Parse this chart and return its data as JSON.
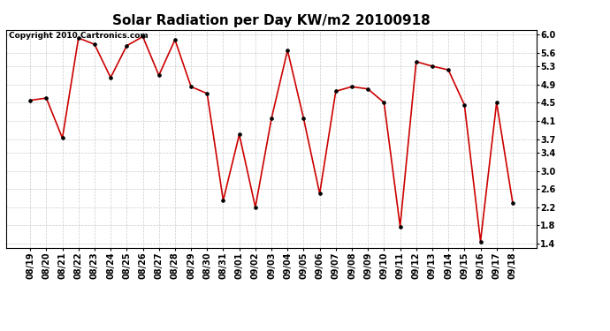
{
  "title": "Solar Radiation per Day KW/m2 20100918",
  "copyright": "Copyright 2010 Cartronics.com",
  "dates": [
    "08/19",
    "08/20",
    "08/21",
    "08/22",
    "08/23",
    "08/24",
    "08/25",
    "08/26",
    "08/27",
    "08/28",
    "08/29",
    "08/30",
    "08/31",
    "09/01",
    "09/02",
    "09/03",
    "09/04",
    "09/05",
    "09/06",
    "09/07",
    "09/08",
    "09/09",
    "09/10",
    "09/11",
    "09/12",
    "09/13",
    "09/14",
    "09/15",
    "09/16",
    "09/17",
    "09/18"
  ],
  "values": [
    4.55,
    4.6,
    3.72,
    5.92,
    5.78,
    5.05,
    5.75,
    5.95,
    5.1,
    5.88,
    4.85,
    4.7,
    2.35,
    3.8,
    2.2,
    4.15,
    5.65,
    4.15,
    2.5,
    4.75,
    4.85,
    4.8,
    4.5,
    1.78,
    5.4,
    5.3,
    5.22,
    4.45,
    1.45,
    4.5,
    2.3
  ],
  "line_color": "#cc0000",
  "marker_color": "#000000",
  "background_color": "#ffffff",
  "grid_color": "#cccccc",
  "ylim": [
    1.3,
    6.1
  ],
  "yticks": [
    1.4,
    1.8,
    2.2,
    2.6,
    3.0,
    3.4,
    3.7,
    4.1,
    4.5,
    4.9,
    5.3,
    5.6,
    6.0
  ],
  "title_fontsize": 11,
  "tick_fontsize": 7,
  "copyright_fontsize": 6.5
}
